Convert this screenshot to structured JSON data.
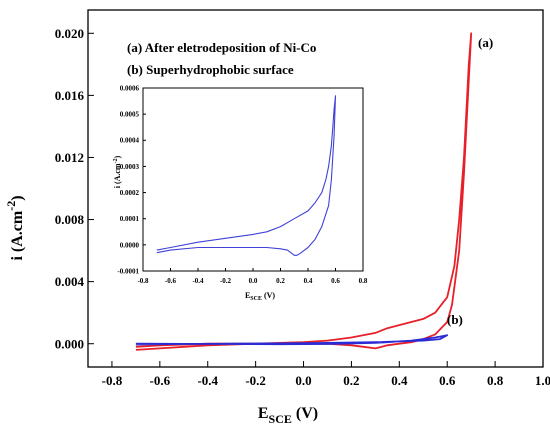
{
  "chart_data": [
    {
      "type": "line",
      "xlabel": {
        "main": "E",
        "sub": "SCE",
        "unit": " (V)"
      },
      "ylabel": {
        "main": "i (A.cm",
        "sup": "-2",
        "close": ")"
      },
      "xlim": [
        -0.9,
        1.0
      ],
      "ylim": [
        -0.0015,
        0.0215
      ],
      "x_ticks": [
        "-0.8",
        "-0.6",
        "-0.4",
        "-0.2",
        "0.0",
        "0.2",
        "0.4",
        "0.6",
        "0.8",
        "1.0"
      ],
      "y_ticks": [
        "0.000",
        "0.004",
        "0.008",
        "0.012",
        "0.016",
        "0.020"
      ],
      "x_tick_values": [
        -0.8,
        -0.6,
        -0.4,
        -0.2,
        0.0,
        0.2,
        0.4,
        0.6,
        0.8,
        1.0
      ],
      "y_tick_values": [
        0.0,
        0.004,
        0.008,
        0.012,
        0.016,
        0.02
      ],
      "legend": [
        "(a) After eletrodeposition of Ni-Co",
        "(b) Superhydrophobic surface"
      ],
      "legend_position": "top-left",
      "series": [
        {
          "name": "(a)",
          "color": "#e8202a",
          "x": [
            -0.7,
            -0.6,
            -0.4,
            -0.2,
            0.0,
            0.1,
            0.2,
            0.3,
            0.35,
            0.4,
            0.45,
            0.5,
            0.55,
            0.6,
            0.63,
            0.65,
            0.67,
            0.68,
            0.69,
            0.7,
            0.69,
            0.67,
            0.65,
            0.62,
            0.6,
            0.55,
            0.5,
            0.45,
            0.4,
            0.35,
            0.3,
            0.25,
            0.2,
            0.1,
            0.0,
            -0.2,
            -0.4,
            -0.6,
            -0.7
          ],
          "y": [
            -0.0004,
            -0.0003,
            -0.0001,
            0.0,
            0.0001,
            0.0002,
            0.0004,
            0.0007,
            0.001,
            0.0012,
            0.0014,
            0.0016,
            0.002,
            0.003,
            0.005,
            0.008,
            0.012,
            0.015,
            0.018,
            0.02,
            0.017,
            0.011,
            0.006,
            0.0025,
            0.0014,
            0.0006,
            0.0003,
            0.0001,
            0.0,
            -0.0001,
            -0.0003,
            -0.0002,
            -0.0001,
            0.0,
            0.0,
            0.0,
            0.0,
            -0.0001,
            -0.0002
          ]
        },
        {
          "name": "(b)",
          "color": "#2b2bd6",
          "x": [
            -0.7,
            -0.5,
            -0.3,
            -0.1,
            0.1,
            0.3,
            0.5,
            0.57,
            0.6,
            0.55,
            0.45,
            0.3,
            0.1,
            -0.1,
            -0.3,
            -0.5,
            -0.7
          ],
          "y": [
            -5e-05,
            -2e-05,
            0.0,
            2e-05,
            5e-05,
            0.0001,
            0.0002,
            0.0003,
            0.00055,
            0.0004,
            0.0002,
            5e-05,
            -2e-05,
            -3e-05,
            -2e-05,
            -1e-05,
            0.0
          ]
        }
      ],
      "annotations": [
        "(a)",
        "(b)"
      ]
    },
    {
      "type": "line",
      "xlabel": {
        "main": "E",
        "sub": "SCE",
        "unit": " (V)"
      },
      "ylabel": {
        "main": "i (A.cm",
        "sup": "-2",
        "close": ")"
      },
      "xlim": [
        -0.8,
        0.8
      ],
      "ylim": [
        -0.0001,
        0.0006
      ],
      "x_ticks": [
        "-0.8",
        "-0.6",
        "-0.4",
        "-0.2",
        "0.0",
        "0.2",
        "0.4",
        "0.6",
        "0.8"
      ],
      "y_ticks": [
        "-0.0001",
        "0.0000",
        "0.0001",
        "0.0002",
        "0.0003",
        "0.0004",
        "0.0005",
        "0.0006"
      ],
      "x_tick_values": [
        -0.8,
        -0.6,
        -0.4,
        -0.2,
        0.0,
        0.2,
        0.4,
        0.6,
        0.8
      ],
      "y_tick_values": [
        -0.0001,
        0.0,
        0.0001,
        0.0002,
        0.0003,
        0.0004,
        0.0005,
        0.0006
      ],
      "series": [
        {
          "color": "#4040d8",
          "x": [
            -0.7,
            -0.6,
            -0.4,
            -0.2,
            0.0,
            0.1,
            0.2,
            0.3,
            0.4,
            0.45,
            0.5,
            0.53,
            0.55,
            0.57,
            0.58,
            0.59,
            0.6,
            0.59,
            0.57,
            0.55,
            0.5,
            0.45,
            0.4,
            0.35,
            0.32,
            0.3,
            0.25,
            0.2,
            0.1,
            0.0,
            -0.2,
            -0.4,
            -0.6,
            -0.7
          ],
          "y": [
            -2e-05,
            -1e-05,
            1e-05,
            2.5e-05,
            4e-05,
            5e-05,
            7e-05,
            0.0001,
            0.00013,
            0.00016,
            0.0002,
            0.00025,
            0.0003,
            0.00038,
            0.00045,
            0.00052,
            0.00057,
            0.00042,
            0.00025,
            0.00015,
            7e-05,
            2e-05,
            -1e-05,
            -3e-05,
            -4e-05,
            -4e-05,
            -2e-05,
            -1.5e-05,
            -1e-05,
            -1e-05,
            -1e-05,
            -1e-05,
            -2e-05,
            -3e-05
          ]
        }
      ]
    }
  ]
}
